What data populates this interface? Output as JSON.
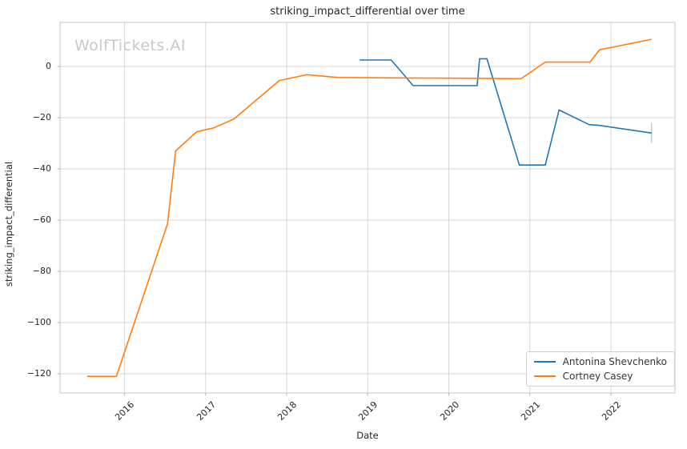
{
  "watermark": "WolfTickets.AI",
  "colors": {
    "grid": "#d7d7d7",
    "plot_border": "#cfcfcf",
    "tick_mark": "#b5b5b5",
    "text": "#262626",
    "watermark": "#c9c9c9",
    "series_blue": "#1f77b4",
    "series_orange": "#ff7f0e"
  },
  "chart_data": {
    "type": "line",
    "title": "striking_impact_differential over time",
    "xlabel": "Date",
    "ylabel": "striking_impact_differential",
    "grid": true,
    "legend_position": "lower right",
    "xlim": [
      2015.205,
      2022.79
    ],
    "ylim": [
      -127.5,
      17.2
    ],
    "x_ticks": [
      {
        "value": 2016,
        "label": "2016"
      },
      {
        "value": 2017,
        "label": "2017"
      },
      {
        "value": 2018,
        "label": "2018"
      },
      {
        "value": 2019,
        "label": "2019"
      },
      {
        "value": 2020,
        "label": "2020"
      },
      {
        "value": 2021,
        "label": "2021"
      },
      {
        "value": 2022,
        "label": "2022"
      }
    ],
    "y_ticks": [
      {
        "value": 0,
        "label": "0"
      },
      {
        "value": -20,
        "label": "−20"
      },
      {
        "value": -40,
        "label": "−40"
      },
      {
        "value": -60,
        "label": "−60"
      },
      {
        "value": -80,
        "label": "−80"
      },
      {
        "value": -100,
        "label": "−100"
      },
      {
        "value": -120,
        "label": "−120"
      }
    ],
    "series": [
      {
        "name": "Antonina Shevchenko",
        "color": "#1f77b4",
        "points": [
          [
            2018.9,
            2.5
          ],
          [
            2019.29,
            2.5
          ],
          [
            2019.56,
            -7.5
          ],
          [
            2020.35,
            -7.5
          ],
          [
            2020.38,
            3.0
          ],
          [
            2020.47,
            3.0
          ],
          [
            2020.87,
            -38.5
          ],
          [
            2021.19,
            -38.5
          ],
          [
            2021.36,
            -17.0
          ],
          [
            2021.73,
            -22.7
          ],
          [
            2021.85,
            -23.0
          ],
          [
            2022.5,
            -26.0
          ]
        ],
        "end_tick": {
          "x": 2022.5,
          "y_from": -22.0,
          "y_to": -29.8,
          "opacity": 0.35
        }
      },
      {
        "name": "Cortney Casey",
        "color": "#ff7f0e",
        "points": [
          [
            2015.54,
            -121.0
          ],
          [
            2015.9,
            -121.0
          ],
          [
            2016.53,
            -61.5
          ],
          [
            2016.63,
            -33.0
          ],
          [
            2016.89,
            -25.5
          ],
          [
            2017.1,
            -24.0
          ],
          [
            2017.35,
            -20.5
          ],
          [
            2017.91,
            -5.5
          ],
          [
            2018.25,
            -3.2
          ],
          [
            2018.63,
            -4.3
          ],
          [
            2019.5,
            -4.5
          ],
          [
            2020.36,
            -4.6
          ],
          [
            2020.89,
            -4.8
          ],
          [
            2021.19,
            1.7
          ],
          [
            2021.74,
            1.7
          ],
          [
            2021.86,
            6.5
          ],
          [
            2022.5,
            10.6
          ]
        ]
      }
    ]
  }
}
